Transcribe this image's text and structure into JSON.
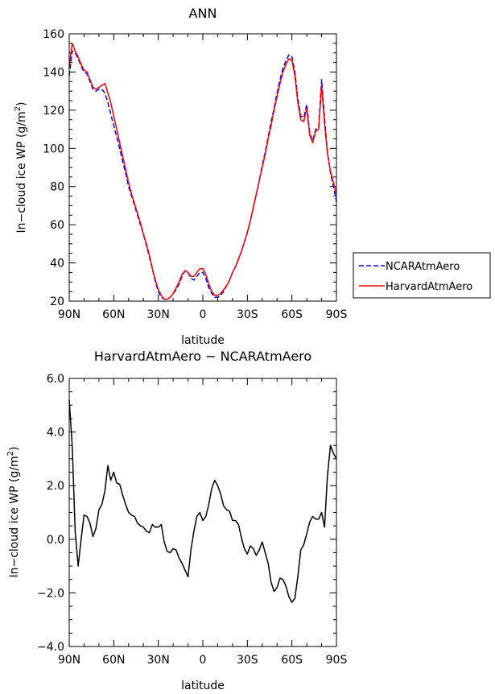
{
  "chart_data": [
    {
      "type": "line",
      "title": "ANN",
      "xlabel": "latitude",
      "ylabel": "In−cloud ice WP (g/m",
      "ylabel_sup": "2",
      "ylabel_tail": ")",
      "xlim": [
        90,
        -90
      ],
      "ylim": [
        20,
        160
      ],
      "x_ticks": [
        90,
        60,
        30,
        0,
        -30,
        -60,
        -90
      ],
      "x_tick_labels": [
        "90N",
        "60N",
        "30N",
        "0",
        "30S",
        "60S",
        "90S"
      ],
      "y_ticks": [
        20,
        40,
        60,
        80,
        100,
        120,
        140,
        160
      ],
      "y_tick_labels": [
        "20",
        "40",
        "60",
        "80",
        "100",
        "120",
        "140",
        "160"
      ],
      "legend_position": "right-outside",
      "series": [
        {
          "name": "NCARAtmAero",
          "color": "#0000ff",
          "dash": true,
          "x": [
            90,
            88,
            86,
            84,
            82,
            80,
            78,
            76,
            74,
            72,
            70,
            68,
            66,
            64,
            62,
            60,
            58,
            56,
            54,
            52,
            50,
            48,
            46,
            44,
            42,
            40,
            38,
            36,
            34,
            32,
            30,
            28,
            26,
            24,
            22,
            20,
            18,
            16,
            14,
            12,
            10,
            8,
            6,
            4,
            2,
            0,
            -2,
            -4,
            -6,
            -8,
            -10,
            -12,
            -14,
            -16,
            -18,
            -20,
            -22,
            -24,
            -26,
            -28,
            -30,
            -32,
            -34,
            -36,
            -38,
            -40,
            -42,
            -44,
            -46,
            -48,
            -50,
            -52,
            -54,
            -56,
            -58,
            -60,
            -62,
            -64,
            -66,
            -68,
            -70,
            -72,
            -74,
            -76,
            -78,
            -80,
            -82,
            -84,
            -86,
            -88,
            -90
          ],
          "values": [
            138,
            151,
            150,
            147,
            143,
            140,
            139,
            135,
            131,
            130,
            131,
            131,
            129,
            124,
            118,
            112,
            106,
            100,
            93,
            87,
            80,
            75,
            70,
            65,
            60,
            55,
            49,
            43,
            37,
            30,
            25,
            22,
            21,
            21,
            22,
            24,
            26,
            29,
            33,
            36,
            35,
            32,
            31,
            33,
            35,
            35,
            32,
            27,
            24,
            22,
            22,
            23,
            25,
            28,
            31,
            35,
            38,
            42,
            46,
            51,
            56,
            62,
            69,
            76,
            83,
            91,
            98,
            106,
            114,
            121,
            129,
            136,
            142,
            146,
            149,
            148,
            140,
            126,
            117,
            116,
            123,
            108,
            104,
            110,
            111,
            136,
            116,
            98,
            87,
            80,
            72
          ]
        },
        {
          "name": "HarvardAtmAero",
          "color": "#ff0000",
          "dash": false,
          "x": [
            90,
            88,
            86,
            84,
            82,
            80,
            78,
            76,
            74,
            72,
            70,
            68,
            66,
            64,
            62,
            60,
            58,
            56,
            54,
            52,
            50,
            48,
            46,
            44,
            42,
            40,
            38,
            36,
            34,
            32,
            30,
            28,
            26,
            24,
            22,
            20,
            18,
            16,
            14,
            12,
            10,
            8,
            6,
            4,
            2,
            0,
            -2,
            -4,
            -6,
            -8,
            -10,
            -12,
            -14,
            -16,
            -18,
            -20,
            -22,
            -24,
            -26,
            -28,
            -30,
            -32,
            -34,
            -36,
            -38,
            -40,
            -42,
            -44,
            -46,
            -48,
            -50,
            -52,
            -54,
            -56,
            -58,
            -60,
            -62,
            -64,
            -66,
            -68,
            -70,
            -72,
            -74,
            -76,
            -78,
            -80,
            -82,
            -84,
            -86,
            -88,
            -90
          ],
          "values": [
            143,
            155,
            151,
            148,
            144,
            141,
            140,
            136,
            132,
            131,
            132,
            133,
            134,
            129,
            124,
            117,
            110,
            103,
            96,
            89,
            82,
            76,
            71,
            66,
            61,
            55,
            50,
            44,
            37,
            31,
            26,
            23,
            21,
            21,
            22,
            24,
            27,
            30,
            34,
            36,
            35,
            33,
            33,
            35,
            37,
            37,
            34,
            29,
            25,
            23,
            23,
            24,
            26,
            28,
            31,
            35,
            38,
            42,
            46,
            51,
            56,
            62,
            69,
            76,
            83,
            90,
            97,
            105,
            112,
            120,
            127,
            134,
            140,
            144,
            147,
            146,
            138,
            124,
            115,
            114,
            121,
            107,
            103,
            109,
            110,
            133,
            113,
            97,
            88,
            82,
            76
          ]
        }
      ]
    },
    {
      "type": "line",
      "title": "HarvardAtmAero − NCARAtmAero",
      "xlabel": "latitude",
      "ylabel": "In−cloud ice WP (g/m",
      "ylabel_sup": "2",
      "ylabel_tail": ")",
      "xlim": [
        90,
        -90
      ],
      "ylim": [
        -4.0,
        6.0
      ],
      "x_ticks": [
        90,
        60,
        30,
        0,
        -30,
        -60,
        -90
      ],
      "x_tick_labels": [
        "90N",
        "60N",
        "30N",
        "0",
        "30S",
        "60S",
        "90S"
      ],
      "y_ticks": [
        -4,
        -2,
        0,
        2,
        4,
        6
      ],
      "y_tick_labels": [
        "−4.0",
        "−2.0",
        "0.0",
        "2.0",
        "4.0",
        "6.0"
      ],
      "series": [
        {
          "color": "#000000",
          "x": [
            90,
            88,
            86,
            84,
            82,
            80,
            78,
            76,
            74,
            72,
            70,
            68,
            66,
            64,
            62,
            60,
            58,
            56,
            54,
            52,
            50,
            48,
            46,
            44,
            42,
            40,
            38,
            36,
            34,
            32,
            30,
            28,
            26,
            24,
            22,
            20,
            18,
            16,
            14,
            12,
            10,
            8,
            6,
            4,
            2,
            0,
            -2,
            -4,
            -6,
            -8,
            -10,
            -12,
            -14,
            -16,
            -18,
            -20,
            -22,
            -24,
            -26,
            -28,
            -30,
            -32,
            -34,
            -36,
            -38,
            -40,
            -42,
            -44,
            -46,
            -48,
            -50,
            -52,
            -54,
            -56,
            -58,
            -60,
            -62,
            -64,
            -66,
            -68,
            -70,
            -72,
            -74,
            -76,
            -78,
            -80,
            -82,
            -84,
            -86,
            -88,
            -90
          ],
          "values": [
            5.2,
            3.5,
            0.3,
            -1.0,
            0.0,
            0.9,
            0.85,
            0.6,
            0.1,
            0.4,
            1.1,
            1.3,
            1.8,
            2.75,
            2.2,
            2.5,
            2.1,
            2.05,
            1.65,
            1.3,
            1.0,
            0.9,
            0.85,
            0.6,
            0.5,
            0.45,
            0.3,
            0.25,
            0.55,
            0.45,
            0.45,
            0.55,
            -0.1,
            -0.45,
            -0.5,
            -0.35,
            -0.4,
            -0.7,
            -0.9,
            -1.15,
            -1.4,
            -0.4,
            0.3,
            0.85,
            1.0,
            0.7,
            0.85,
            1.3,
            1.9,
            2.2,
            2.0,
            1.7,
            1.25,
            1.1,
            1.05,
            0.7,
            0.7,
            0.55,
            0.05,
            -0.35,
            -0.55,
            -0.25,
            -0.35,
            -0.6,
            -0.4,
            -0.1,
            -0.5,
            -0.9,
            -1.6,
            -1.95,
            -1.8,
            -1.45,
            -1.5,
            -1.75,
            -2.15,
            -2.35,
            -2.2,
            -1.4,
            -0.4,
            -0.2,
            0.2,
            0.65,
            0.85,
            0.75,
            0.75,
            1.0,
            0.45,
            2.4,
            3.5,
            3.2,
            3.0
          ]
        }
      ]
    }
  ]
}
